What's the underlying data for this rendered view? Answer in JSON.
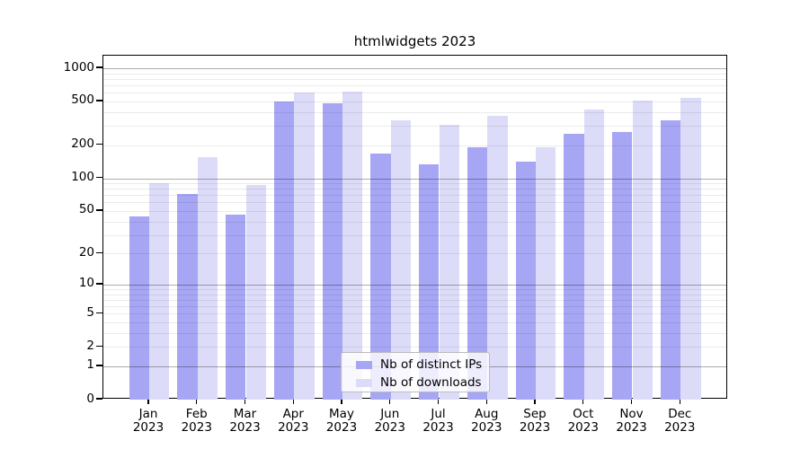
{
  "title": "htmlwidgets 2023",
  "chart_data": {
    "type": "bar",
    "title": "htmlwidgets 2023",
    "yscale": "log1p",
    "ylabel": "",
    "xlabel": "",
    "yticks": [
      0,
      1,
      2,
      5,
      10,
      20,
      50,
      100,
      200,
      500,
      1000
    ],
    "ylim": [
      0,
      1300
    ],
    "grid": "horizontal minor gridlines at 2-9 per decade, darker lines at powers of 10",
    "legend_position": "inside-bottom-center",
    "categories": [
      "Jan 2023",
      "Feb 2023",
      "Mar 2023",
      "Apr 2023",
      "May 2023",
      "Jun 2023",
      "Jul 2023",
      "Aug 2023",
      "Sep 2023",
      "Oct 2023",
      "Nov 2023",
      "Dec 2023"
    ],
    "series": [
      {
        "name": "Nb of distinct IPs",
        "color": "#a6a6f4",
        "values": [
          45,
          72,
          46,
          500,
          480,
          168,
          133,
          193,
          143,
          254,
          264,
          335
        ]
      },
      {
        "name": "Nb of downloads",
        "color": "#dcdcf9",
        "values": [
          90,
          155,
          86,
          600,
          615,
          336,
          306,
          372,
          192,
          420,
          505,
          538
        ]
      }
    ]
  },
  "colors": {
    "axis": "#000000",
    "major_grid": "rgba(0,0,0,0.32)",
    "minor_grid": "rgba(0,0,0,0.08)",
    "legend_border": "#bbbbbb",
    "legend_bg": "rgba(255,255,255,0.8)"
  }
}
